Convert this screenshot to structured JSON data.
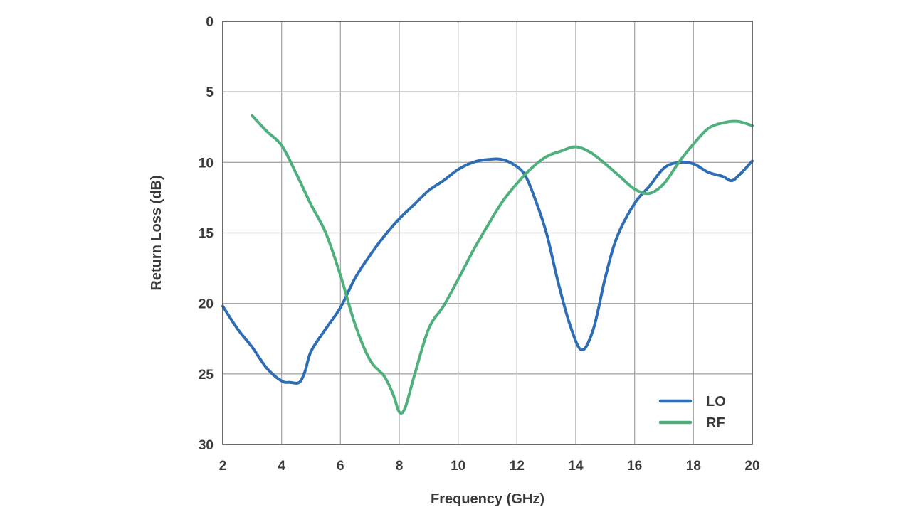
{
  "chart_data": {
    "type": "line",
    "xlabel": "Frequency (GHz)",
    "ylabel": "Return Loss (dB)",
    "xlim": [
      2,
      20
    ],
    "ylim": [
      0,
      30
    ],
    "y_inverted": true,
    "grid": true,
    "legend_position": "bottom-right",
    "x_ticks": [
      "2",
      "4",
      "6",
      "8",
      "10",
      "12",
      "14",
      "16",
      "18",
      "20"
    ],
    "y_ticks": [
      "0",
      "5",
      "10",
      "15",
      "20",
      "25",
      "30"
    ],
    "series": [
      {
        "name": "LO",
        "color": "#2f6db4",
        "x": [
          2,
          2.5,
          3,
          3.5,
          4,
          4.3,
          4.6,
          4.8,
          5,
          5.5,
          6,
          6.5,
          7,
          7.5,
          8,
          8.5,
          9,
          9.5,
          10,
          10.5,
          11,
          11.5,
          12,
          12.3,
          12.6,
          13,
          13.4,
          13.8,
          14.2,
          14.6,
          15,
          15.4,
          16,
          16.5,
          17,
          17.5,
          18,
          18.5,
          19,
          19.3,
          19.6,
          20
        ],
        "y": [
          20.2,
          21.8,
          23.1,
          24.6,
          25.5,
          25.6,
          25.6,
          24.8,
          23.4,
          21.8,
          20.3,
          18.2,
          16.6,
          15.2,
          14.0,
          13.0,
          12.0,
          11.3,
          10.5,
          10.0,
          9.8,
          9.8,
          10.3,
          11.0,
          12.5,
          15.0,
          18.5,
          21.5,
          23.3,
          21.8,
          18.2,
          15.3,
          12.9,
          11.7,
          10.4,
          10.0,
          10.1,
          10.7,
          11.0,
          11.3,
          10.8,
          9.9
        ]
      },
      {
        "name": "RF",
        "color": "#4fb07e",
        "x": [
          3,
          3.5,
          4,
          4.5,
          5,
          5.5,
          6,
          6.5,
          7,
          7.5,
          7.8,
          8,
          8.2,
          8.5,
          9,
          9.5,
          10,
          10.5,
          11,
          11.5,
          12,
          12.5,
          13,
          13.5,
          14,
          14.5,
          15,
          15.5,
          16,
          16.5,
          17,
          17.5,
          18,
          18.5,
          19,
          19.5,
          20
        ],
        "y": [
          6.7,
          7.8,
          8.8,
          10.8,
          13.0,
          15.0,
          18.0,
          21.5,
          24.0,
          25.2,
          26.5,
          27.7,
          27.4,
          25.2,
          21.8,
          20.2,
          18.3,
          16.3,
          14.5,
          12.8,
          11.5,
          10.4,
          9.6,
          9.2,
          8.9,
          9.3,
          10.1,
          11.0,
          11.9,
          12.2,
          11.5,
          10.0,
          8.7,
          7.6,
          7.2,
          7.1,
          7.4
        ]
      }
    ]
  }
}
